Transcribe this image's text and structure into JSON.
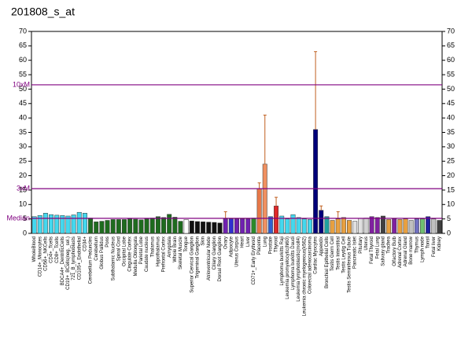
{
  "chart_data": {
    "type": "bar",
    "title": "201808_s_at",
    "ylim": [
      0,
      70
    ],
    "yticks": [
      0,
      5,
      10,
      15,
      20,
      25,
      30,
      35,
      40,
      45,
      50,
      55,
      60,
      65,
      70
    ],
    "y2lim": [
      0,
      70
    ],
    "y2ticks": [
      0,
      5,
      10,
      15,
      20,
      25,
      30,
      35,
      40,
      45,
      50,
      55,
      60,
      65,
      70
    ],
    "reference_lines": [
      {
        "label": "10xM",
        "value": 51.5
      },
      {
        "label": "3xM",
        "value": 15.5
      },
      {
        "label": "Median",
        "value": 5.2
      }
    ],
    "reference_color": "#800080",
    "categories": [
      "WholeBlood",
      "CD14+_Monocytes",
      "CD56+_NKCells",
      "CD4+_Tcells",
      "CD8+_Tcells",
      "BDCA4+_DentriticCells",
      "CD19+_BCells(neg._sel.)",
      "721_B_lymphoblasts",
      "CD105+_Endothelial",
      "CD34+",
      "Cerebellum Peduncles",
      "Cerebellum",
      "Globus Pallidus",
      "Pons",
      "Subthalamic Nucleus",
      "Spinal Cord",
      "Occipital Lobe",
      "Cingulate Cortex",
      "Medulla Oblongata",
      "Parietal Lobe",
      "Caudate nucleus",
      "Thalamus",
      "Hypothalamus",
      "Prefrontal Cortex",
      "Amygdala",
      "Whole Brain",
      "Skeletal Muscle",
      "Tongue",
      "Superior Cervical Ganglion",
      "Trigeminal Ganglion",
      "Skin",
      "Atrioventricular Node",
      "Ciliary Ganglion",
      "Dorsal Root Ganglion",
      "Ovary",
      "Adipocyte",
      "Uterus Corpus",
      "Heart",
      "Liver",
      "CD71+_Early Erythroid",
      "Placenta",
      "Lung",
      "Prostate",
      "Thyroid",
      "Lymphoma burkitts Raji",
      "Leukemia promyelocytic(hl60)",
      "Lymphoma burkitts Daudi",
      "Leukemia lymphoblastic(molt4)",
      "Leukemia chronic myelogenous(k562)",
      "Colorectal adenocarcinoma",
      "Cardiac Myocytes",
      "Appendix",
      "Bronchial Epithelial Cells",
      "Testis Germ Cell",
      "Testis Interstitial",
      "Testis Leydig Cell",
      "Testis Seminiferous Tubule",
      "Pancreatic Islet",
      "Pituitary",
      "Uterus",
      "Fetal Thyroid",
      "Fetal Lung",
      "Salivary gland",
      "Trachea",
      "Olfactory Bulb",
      "Adrenal Cortex",
      "Adrenal Gland",
      "Bone marrow",
      "Thymus",
      "Lymph node",
      "Tonsil",
      "Fetal liver",
      "Kidney"
    ],
    "values": [
      5.8,
      6.2,
      7,
      6.5,
      6.3,
      6.2,
      6.0,
      6.4,
      7.3,
      7.0,
      5.3,
      4.0,
      4.2,
      4.5,
      4.8,
      4.8,
      4.8,
      5.0,
      4.9,
      4.7,
      5.0,
      5.3,
      5.8,
      5.5,
      6.6,
      5.6,
      4.2,
      4.8,
      4.3,
      4.1,
      4.0,
      3.9,
      3.8,
      3.6,
      5.0,
      5.0,
      5.0,
      5.0,
      5.0,
      5.3,
      15.5,
      24,
      5.8,
      9.5,
      6.0,
      5.0,
      6.5,
      5.5,
      5.0,
      4.8,
      36,
      8,
      5.8,
      4.5,
      5.0,
      5.5,
      4.5,
      4.2,
      5.2,
      5.3,
      5.8,
      5.5,
      6.0,
      4.8,
      5.0,
      4.8,
      5.0,
      4.5,
      5.0,
      5.0,
      5.8,
      5.0,
      4.5
    ],
    "errors": [
      null,
      null,
      null,
      null,
      null,
      null,
      null,
      null,
      null,
      null,
      null,
      null,
      null,
      null,
      null,
      null,
      null,
      null,
      null,
      null,
      null,
      null,
      null,
      null,
      null,
      null,
      null,
      null,
      null,
      null,
      null,
      null,
      null,
      null,
      2.5,
      null,
      null,
      null,
      null,
      null,
      2,
      17,
      null,
      3,
      null,
      null,
      null,
      null,
      null,
      null,
      27,
      1.5,
      null,
      null,
      2.5,
      null,
      null,
      null,
      null,
      null,
      null,
      null,
      null,
      null,
      null,
      null,
      null,
      null,
      null,
      null,
      null,
      null,
      null
    ],
    "colors": [
      "#44d8ee",
      "#44d8ee",
      "#44d8ee",
      "#44d8ee",
      "#44d8ee",
      "#44d8ee",
      "#44d8ee",
      "#44d8ee",
      "#44d8ee",
      "#44d8ee",
      "#1e6b1e",
      "#1e6b1e",
      "#1e6b1e",
      "#1e6b1e",
      "#1e6b1e",
      "#1e6b1e",
      "#1e6b1e",
      "#1e6b1e",
      "#1e6b1e",
      "#1e6b1e",
      "#1e6b1e",
      "#1e6b1e",
      "#1e6b1e",
      "#1e6b1e",
      "#1e6b1e",
      "#1e6b1e",
      "#1e6b1e",
      "#ffffff",
      "#111111",
      "#111111",
      "#111111",
      "#111111",
      "#111111",
      "#111111",
      "#7020b0",
      "#3030d0",
      "#7020b0",
      "#7020b0",
      "#7020b0",
      "#2a8a2a",
      "#e87848",
      "#f09060",
      "#3060d0",
      "#e02828",
      "#44d8ee",
      "#44d8ee",
      "#44d8ee",
      "#44d8ee",
      "#44d8ee",
      "#44d8ee",
      "#00007a",
      "#00007a",
      "#20a0a0",
      "#e8a040",
      "#e8a040",
      "#e8a040",
      "#e8a040",
      "#e0e0e0",
      "#e0e0e0",
      "#d0d0d0",
      "#8020a0",
      "#8020a0",
      "#404040",
      "#e8a040",
      "#8020a0",
      "#e8a040",
      "#e8a040",
      "#c0c0c0",
      "#7070c0",
      "#70c070",
      "#2020a0",
      "#c0c0c0",
      "#404040"
    ]
  }
}
